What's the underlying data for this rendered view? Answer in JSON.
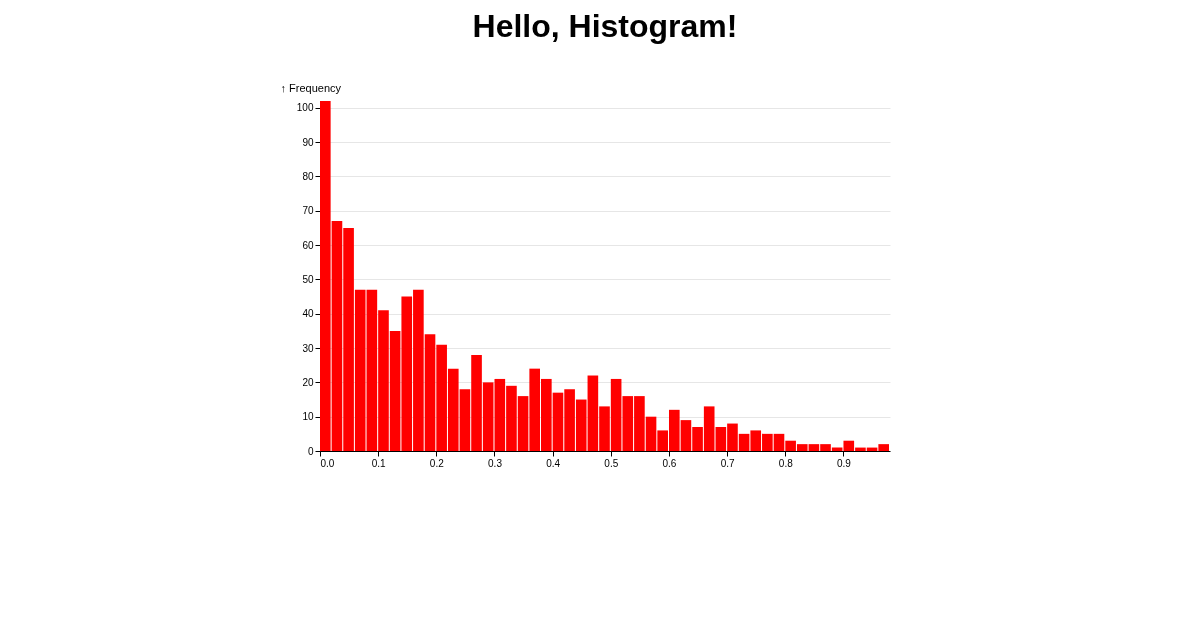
{
  "chart_data": {
    "type": "histogram",
    "title": "Hello, Histogram!",
    "ylabel": "↑ Frequency",
    "bins": [
      0,
      0.02,
      0.04,
      0.06,
      0.08,
      0.1,
      0.12,
      0.14,
      0.16,
      0.18,
      0.2,
      0.22,
      0.24,
      0.26,
      0.28,
      0.3,
      0.32,
      0.34,
      0.36,
      0.38,
      0.4,
      0.42,
      0.44,
      0.46,
      0.48,
      0.5,
      0.52,
      0.54,
      0.56,
      0.58,
      0.6,
      0.62,
      0.64,
      0.66,
      0.68,
      0.7,
      0.72,
      0.74,
      0.76,
      0.78,
      0.8,
      0.82,
      0.84,
      0.86,
      0.88,
      0.9,
      0.92,
      0.94,
      0.96,
      0.98
    ],
    "values": [
      102,
      67,
      65,
      47,
      47,
      41,
      35,
      45,
      47,
      34,
      31,
      24,
      18,
      28,
      20,
      21,
      19,
      16,
      24,
      21,
      17,
      18,
      15,
      22,
      13,
      21,
      16,
      16,
      10,
      6,
      12,
      9,
      7,
      13,
      7,
      8,
      5,
      6,
      5,
      5,
      3,
      2,
      2,
      2,
      1,
      3,
      1,
      1,
      2
    ],
    "color": "#ff0000",
    "xlim": [
      0,
      0.98
    ],
    "ylim": [
      0,
      102
    ],
    "xticks": [
      {
        "value": 0,
        "label": "0.0"
      },
      0.1,
      0.2,
      0.3,
      0.4,
      0.5,
      0.6,
      0.7,
      0.8,
      0.9
    ],
    "yticks": [
      0,
      10,
      20,
      30,
      40,
      50,
      60,
      70,
      80,
      90,
      100
    ],
    "grid": "y"
  }
}
